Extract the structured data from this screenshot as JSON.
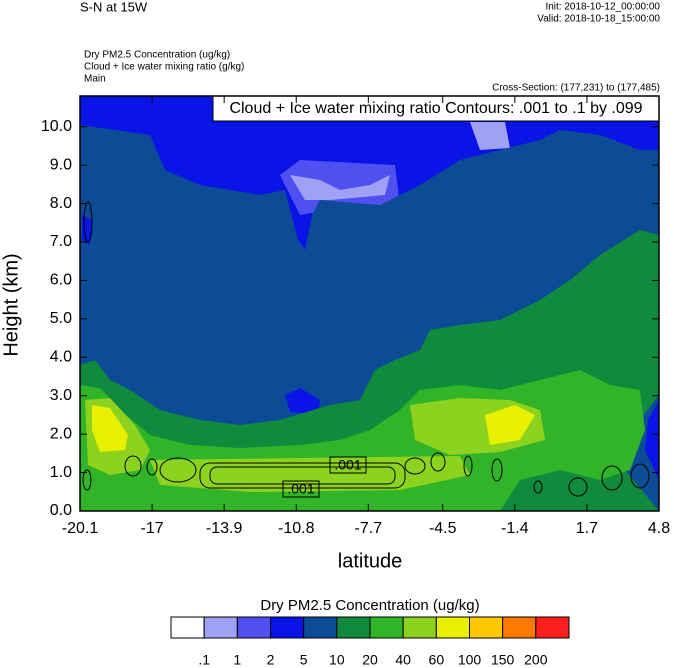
{
  "header": {
    "title": "S-N at 15W",
    "init": "Init: 2018-10-12_00:00:00",
    "valid": "Valid: 2018-10-18_15:00:00",
    "fields": [
      "Dry PM2.5 Concentration   (ug/kg)",
      "Cloud + Ice water mixing ratio   (g/kg)",
      "Main"
    ],
    "cross_section": "Cross-Section: (177,231) to (177,485)"
  },
  "chart_data": {
    "type": "contour",
    "title": "Cloud + Ice water mixing ratio Contours: .001 to .1 by .099",
    "x_label": "latitude",
    "y_label": "Height (km)",
    "xlim": [
      -20.1,
      4.8
    ],
    "xticks": [
      -20.1,
      -17.0,
      -13.9,
      -10.8,
      -7.7,
      -4.5,
      -1.4,
      1.7,
      4.8
    ],
    "ylim": [
      0,
      10.8
    ],
    "yticks": [
      {
        "value": 0,
        "label": "0.0"
      },
      {
        "value": 1,
        "label": "1.0"
      },
      {
        "value": 2,
        "label": "2.0"
      },
      {
        "value": 3,
        "label": "3.0"
      },
      {
        "value": 4,
        "label": "4.0"
      },
      {
        "value": 5,
        "label": "5.0"
      },
      {
        "value": 6,
        "label": "6.0"
      },
      {
        "value": 7,
        "label": "7.0"
      },
      {
        "value": 8,
        "label": "8.0"
      },
      {
        "value": 9,
        "label": "9.0"
      },
      {
        "value": 10,
        "label": "10.0"
      }
    ],
    "contour_labels": [
      ".001",
      ".001"
    ],
    "colorbar": {
      "title": "Dry PM2.5 Concentration  (ug/kg)",
      "levels": [
        {
          "value": 0.1,
          "label": ".1"
        },
        1,
        2,
        5,
        10,
        20,
        40,
        60,
        100,
        150,
        200
      ],
      "colors": [
        "#ffffff",
        "#a0a0f5",
        "#5050f0",
        "#0a14e6",
        "#0c4c96",
        "#108a3c",
        "#32b428",
        "#8cd21e",
        "#e6f000",
        "#ffc800",
        "#ff7800",
        "#ff1e1e"
      ]
    }
  }
}
